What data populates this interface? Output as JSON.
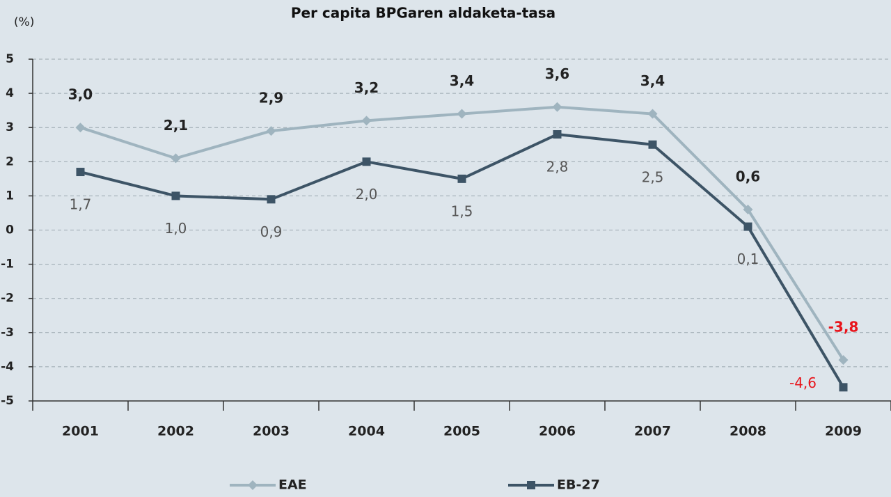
{
  "chart_data": {
    "type": "line",
    "title": "Per capita BPGaren aldaketa-tasa",
    "y_label": "(%)",
    "categories": [
      "2001",
      "2002",
      "2003",
      "2004",
      "2005",
      "2006",
      "2007",
      "2008",
      "2009"
    ],
    "series": [
      {
        "name": "EAE",
        "color": "#9fb4bf",
        "marker": "diamond",
        "values": [
          3.0,
          2.1,
          2.9,
          3.2,
          3.4,
          3.6,
          3.4,
          0.6,
          -3.8
        ],
        "value_labels": [
          "3,0",
          "2,1",
          "2,9",
          "3,2",
          "3,4",
          "3,6",
          "3,4",
          "0,6",
          "-3,8"
        ]
      },
      {
        "name": "EB-27",
        "color": "#3d5466",
        "marker": "square",
        "values": [
          1.7,
          1.0,
          0.9,
          2.0,
          1.5,
          2.8,
          2.5,
          0.1,
          -4.6
        ],
        "value_labels": [
          "1,7",
          "1,0",
          "0,9",
          "2,0",
          "1,5",
          "2,8",
          "2,5",
          "0,1",
          "-4,6"
        ]
      }
    ],
    "negative_label_color": "#e8141b",
    "ylim": [
      -5,
      5
    ],
    "yticks": [
      5,
      4,
      3,
      2,
      1,
      0,
      -1,
      -2,
      -3,
      -4,
      -5
    ],
    "grid": true,
    "legend": "bottom"
  }
}
